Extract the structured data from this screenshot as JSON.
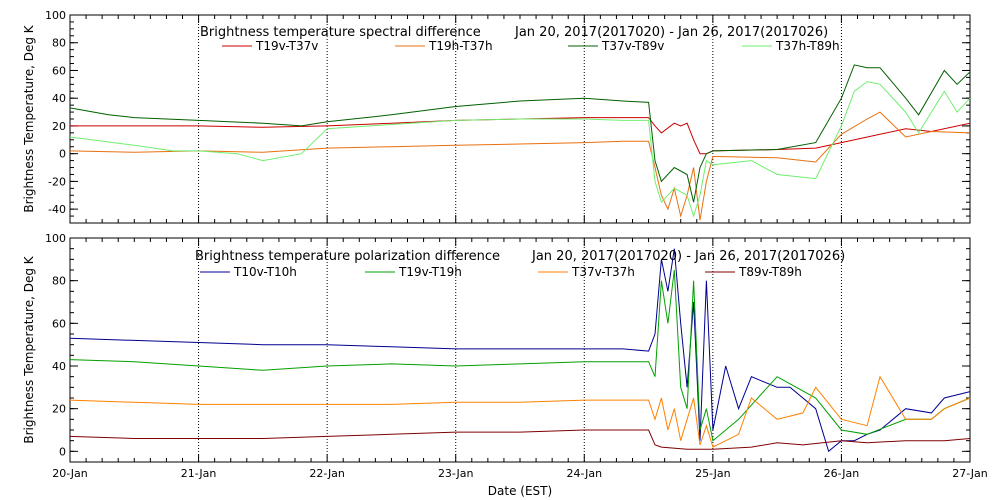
{
  "chart_data": [
    {
      "type": "line",
      "title": "Brightness temperature spectral difference",
      "date_range": "Jan 20, 2017(2017020) - Jan 26, 2017(2017026)",
      "ylabel": "Brightness Temperature, Deg K",
      "xlabel": "",
      "ylim": [
        -50,
        100
      ],
      "yticks": [
        -40,
        -20,
        0,
        20,
        40,
        60,
        80,
        100
      ],
      "xlim": [
        0,
        7
      ],
      "grid": true,
      "legend_position": "top",
      "series": [
        {
          "name": "T19v-T37v",
          "color": "#cc0000",
          "x": [
            0,
            0.5,
            1,
            1.5,
            2,
            2.5,
            3,
            3.5,
            4,
            4.3,
            4.5,
            4.55,
            4.6,
            4.7,
            4.75,
            4.8,
            4.85,
            4.9,
            4.95,
            5,
            5.5,
            5.8,
            6,
            6.3,
            6.5,
            6.7,
            7
          ],
          "y": [
            20,
            20,
            20,
            19,
            20,
            22,
            24,
            25,
            26,
            26,
            26,
            20,
            15,
            22,
            20,
            22,
            10,
            0,
            0,
            2,
            3,
            4,
            8,
            14,
            18,
            16,
            22
          ]
        },
        {
          "name": "T19h-T37h",
          "color": "#e87010",
          "x": [
            0,
            0.5,
            1,
            1.5,
            2,
            2.5,
            3,
            3.5,
            4,
            4.3,
            4.5,
            4.55,
            4.6,
            4.65,
            4.7,
            4.75,
            4.8,
            4.85,
            4.9,
            4.95,
            5,
            5.5,
            5.8,
            6,
            6.2,
            6.3,
            6.5,
            6.7,
            7
          ],
          "y": [
            2,
            1,
            2,
            1,
            4,
            5,
            6,
            7,
            8,
            9,
            9,
            -10,
            -30,
            -40,
            -25,
            -45,
            -30,
            -10,
            -48,
            -20,
            -2,
            -3,
            -6,
            14,
            25,
            30,
            12,
            16,
            15
          ]
        },
        {
          "name": "T37v-T89v",
          "color": "#006000",
          "x": [
            0,
            0.3,
            0.5,
            1,
            1.5,
            1.8,
            2,
            2.5,
            3,
            3.5,
            4,
            4.3,
            4.5,
            4.55,
            4.6,
            4.7,
            4.8,
            4.85,
            4.9,
            4.95,
            5,
            5.5,
            5.8,
            6,
            6.1,
            6.2,
            6.3,
            6.5,
            6.6,
            6.8,
            6.9,
            7
          ],
          "y": [
            33,
            28,
            26,
            24,
            22,
            20,
            23,
            28,
            34,
            38,
            40,
            38,
            37,
            -5,
            -20,
            -10,
            -15,
            -35,
            -10,
            0,
            2,
            3,
            8,
            40,
            64,
            62,
            62,
            40,
            28,
            60,
            50,
            59
          ]
        },
        {
          "name": "T37h-T89h",
          "color": "#70ee70",
          "x": [
            0,
            0.5,
            0.8,
            1,
            1.3,
            1.5,
            1.8,
            2,
            2.5,
            3,
            3.5,
            4,
            4.3,
            4.5,
            4.55,
            4.6,
            4.7,
            4.8,
            4.85,
            4.9,
            4.95,
            5,
            5.3,
            5.5,
            5.8,
            6,
            6.1,
            6.2,
            6.3,
            6.5,
            6.6,
            6.8,
            6.9,
            7
          ],
          "y": [
            12,
            6,
            2,
            2,
            0,
            -5,
            0,
            18,
            21,
            24,
            25,
            25,
            24,
            24,
            -20,
            -35,
            -25,
            -30,
            -45,
            -30,
            -5,
            -8,
            -5,
            -15,
            -18,
            20,
            45,
            52,
            50,
            30,
            15,
            45,
            30,
            40
          ]
        }
      ]
    },
    {
      "type": "line",
      "title": "Brightness temperature polarization difference",
      "date_range": "Jan 20, 2017(2017020) - Jan 26, 2017(2017026)",
      "ylabel": "Brightness Temperature, Deg K",
      "xlabel": "Date (EST)",
      "ylim": [
        -5,
        100
      ],
      "yticks": [
        0,
        20,
        40,
        60,
        80,
        100
      ],
      "xlim": [
        0,
        7
      ],
      "xticks": [
        "20-Jan",
        "21-Jan",
        "22-Jan",
        "23-Jan",
        "24-Jan",
        "25-Jan",
        "26-Jan",
        "27-Jan"
      ],
      "grid": true,
      "legend_position": "top",
      "series": [
        {
          "name": "T10v-T10h",
          "color": "#000090",
          "x": [
            0,
            0.5,
            1,
            1.5,
            2,
            2.5,
            3,
            3.5,
            4,
            4.3,
            4.5,
            4.55,
            4.6,
            4.65,
            4.7,
            4.75,
            4.8,
            4.85,
            4.9,
            4.95,
            5,
            5.1,
            5.2,
            5.3,
            5.5,
            5.6,
            5.8,
            5.9,
            6,
            6.1,
            6.2,
            6.3,
            6.5,
            6.7,
            6.8,
            7
          ],
          "y": [
            53,
            52,
            51,
            50,
            50,
            49,
            48,
            48,
            48,
            48,
            47,
            55,
            90,
            75,
            95,
            60,
            30,
            70,
            5,
            80,
            10,
            40,
            20,
            35,
            30,
            30,
            20,
            0,
            5,
            5,
            8,
            10,
            20,
            18,
            25,
            28
          ]
        },
        {
          "name": "T19v-T19h",
          "color": "#00a000",
          "x": [
            0,
            0.5,
            1,
            1.5,
            2,
            2.5,
            3,
            3.5,
            4,
            4.3,
            4.5,
            4.55,
            4.6,
            4.65,
            4.7,
            4.75,
            4.8,
            4.85,
            4.9,
            4.95,
            5,
            5.2,
            5.5,
            5.8,
            6,
            6.2,
            6.5,
            6.7,
            6.8,
            7
          ],
          "y": [
            43,
            42,
            40,
            38,
            40,
            41,
            40,
            41,
            42,
            42,
            42,
            35,
            80,
            60,
            85,
            30,
            20,
            80,
            10,
            20,
            5,
            15,
            35,
            25,
            10,
            8,
            15,
            15,
            20,
            25
          ]
        },
        {
          "name": "T37v-T37h",
          "color": "#ff8000",
          "x": [
            0,
            0.5,
            1,
            1.5,
            2,
            2.5,
            3,
            3.5,
            4,
            4.3,
            4.5,
            4.55,
            4.6,
            4.65,
            4.7,
            4.75,
            4.8,
            4.85,
            4.9,
            4.95,
            5,
            5.2,
            5.3,
            5.5,
            5.7,
            5.8,
            6,
            6.2,
            6.3,
            6.5,
            6.7,
            6.8,
            7
          ],
          "y": [
            24,
            23,
            22,
            22,
            22,
            22,
            23,
            23,
            24,
            24,
            24,
            15,
            25,
            10,
            20,
            5,
            15,
            25,
            3,
            12,
            2,
            8,
            25,
            15,
            18,
            30,
            15,
            12,
            35,
            15,
            15,
            20,
            25
          ]
        },
        {
          "name": "T89v-T89h",
          "color": "#800000",
          "x": [
            0,
            0.5,
            1,
            1.5,
            2,
            2.5,
            3,
            3.5,
            4,
            4.3,
            4.5,
            4.55,
            4.6,
            4.8,
            5,
            5.3,
            5.5,
            5.7,
            6,
            6.2,
            6.5,
            6.8,
            7
          ],
          "y": [
            7,
            6,
            6,
            6,
            7,
            8,
            9,
            9,
            10,
            10,
            10,
            3,
            2,
            1,
            1,
            2,
            4,
            3,
            5,
            4,
            5,
            5,
            6
          ]
        }
      ]
    }
  ]
}
